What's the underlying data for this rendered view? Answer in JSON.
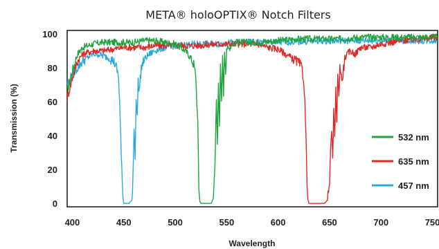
{
  "chart_data": {
    "type": "line",
    "title": "META® holoOPTIX® Notch Filters",
    "xlabel": "Wavelength",
    "ylabel": "Transmission (%)",
    "xlim": [
      395,
      755
    ],
    "ylim": [
      -2,
      102
    ],
    "xticks": [
      400,
      450,
      500,
      550,
      600,
      650,
      700,
      750
    ],
    "yticks": [
      0,
      20,
      40,
      60,
      80,
      100
    ],
    "grid": false,
    "legend": "bottom-right",
    "series": [
      {
        "name": "532 nm",
        "color": "#1fa33c",
        "x": [
          395,
          400,
          405,
          410,
          420,
          430,
          440,
          450,
          460,
          470,
          480,
          490,
          500,
          510,
          515,
          518,
          520,
          522,
          523,
          524,
          525,
          530,
          535,
          537,
          538,
          539,
          540,
          541,
          542,
          543,
          544,
          545,
          546,
          547,
          548,
          549,
          550,
          552,
          555,
          560,
          570,
          580,
          600,
          620,
          640,
          660,
          680,
          700,
          720,
          740,
          755
        ],
        "y": [
          66,
          78,
          88,
          92,
          94,
          95,
          95,
          95,
          95,
          96,
          96,
          95,
          94,
          90,
          86,
          82,
          75,
          45,
          10,
          1,
          0,
          0,
          0,
          3,
          15,
          32,
          60,
          35,
          72,
          48,
          80,
          58,
          86,
          66,
          90,
          78,
          92,
          91,
          94,
          95,
          95,
          95,
          96,
          97,
          97,
          97,
          98,
          98,
          98,
          98,
          98
        ]
      },
      {
        "name": "635 nm",
        "color": "#e02826",
        "x": [
          395,
          400,
          405,
          410,
          420,
          430,
          440,
          450,
          460,
          470,
          480,
          500,
          520,
          540,
          560,
          580,
          590,
          600,
          605,
          610,
          615,
          620,
          623,
          625,
          626,
          627,
          628,
          629,
          630,
          635,
          640,
          645,
          648,
          650,
          651,
          652,
          653,
          654,
          655,
          656,
          657,
          658,
          659,
          660,
          662,
          665,
          670,
          675,
          680,
          690,
          700,
          720,
          740,
          755
        ],
        "y": [
          62,
          74,
          84,
          88,
          90,
          90,
          91,
          92,
          92,
          92,
          93,
          93,
          93,
          94,
          94,
          94,
          92,
          91,
          89,
          87,
          85,
          83,
          80,
          72,
          60,
          40,
          15,
          2,
          0,
          0,
          0,
          0,
          2,
          12,
          30,
          45,
          24,
          55,
          38,
          66,
          50,
          75,
          62,
          82,
          72,
          86,
          90,
          88,
          92,
          92,
          94,
          96,
          97,
          98
        ]
      },
      {
        "name": "457 nm",
        "color": "#2aa9dc",
        "x": [
          395,
          400,
          405,
          410,
          415,
          420,
          425,
          430,
          435,
          440,
          443,
          445,
          446,
          447,
          448,
          449,
          450,
          455,
          458,
          459,
          460,
          461,
          462,
          463,
          464,
          465,
          467,
          470,
          475,
          480,
          490,
          500,
          520,
          540,
          560,
          600,
          650,
          700,
          755
        ],
        "y": [
          70,
          76,
          80,
          84,
          86,
          88,
          88,
          87,
          86,
          84,
          80,
          74,
          60,
          40,
          20,
          5,
          0,
          0,
          2,
          18,
          45,
          28,
          62,
          50,
          72,
          66,
          80,
          85,
          88,
          90,
          92,
          93,
          94,
          94,
          95,
          95,
          96,
          96,
          96
        ]
      }
    ]
  }
}
